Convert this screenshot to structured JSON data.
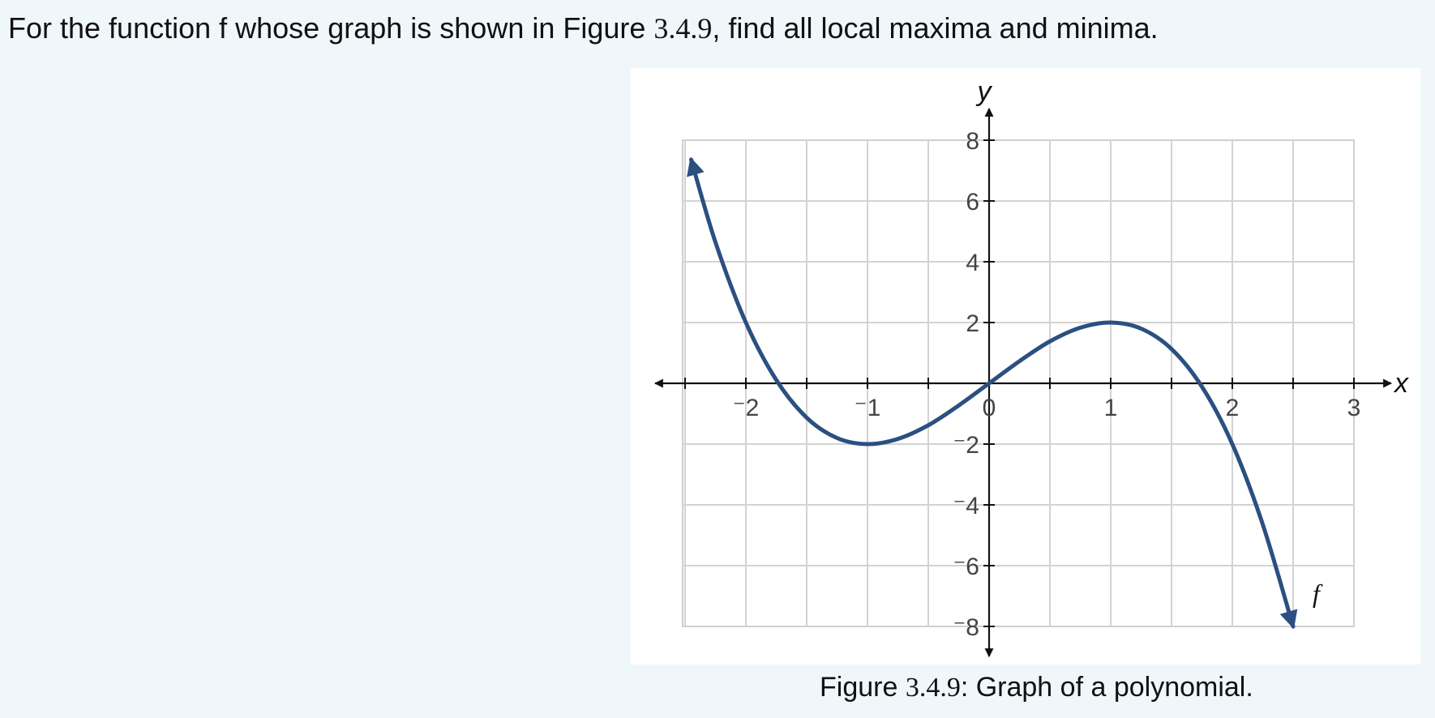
{
  "question": {
    "before": "For the function f whose graph is shown in Figure ",
    "figure_ref": "3.4.9",
    "after": ", find all local maxima and minima."
  },
  "caption": {
    "before": "Figure ",
    "figure_ref": "3.4.9",
    "after": ": Graph of a polynomial."
  },
  "chart_data": {
    "type": "line",
    "title": "",
    "xlabel": "x",
    "ylabel": "y",
    "xlim": [
      -2.5,
      3
    ],
    "ylim": [
      -8,
      8
    ],
    "grid": true,
    "x_ticks": [
      -2,
      -1,
      0,
      1,
      2,
      3
    ],
    "x_tick_labels": [
      "-2",
      "-1",
      "0",
      "1",
      "2",
      "3"
    ],
    "y_ticks": [
      -8,
      -6,
      -4,
      -2,
      2,
      4,
      6,
      8
    ],
    "y_tick_labels": [
      "-8",
      "-6",
      "-4",
      "-2",
      "2",
      "4",
      "6",
      "8"
    ],
    "series": [
      {
        "name": "f",
        "color": "#2b4f80",
        "x": [
          -2.45,
          -2.25,
          -2.0,
          -1.75,
          -1.5,
          -1.25,
          -1.0,
          -0.75,
          -0.5,
          -0.25,
          0.0,
          0.25,
          0.5,
          0.75,
          1.0,
          1.25,
          1.5,
          1.75,
          2.0,
          2.25,
          2.5
        ],
        "y": [
          7.36,
          4.64,
          2.0,
          0.11,
          -1.13,
          -1.8,
          -2.0,
          -1.83,
          -1.38,
          -0.73,
          0.0,
          0.73,
          1.38,
          1.83,
          2.0,
          1.8,
          1.13,
          -0.11,
          -2.0,
          -4.64,
          -8.0
        ],
        "arrow_start": true,
        "arrow_end": true
      }
    ]
  }
}
